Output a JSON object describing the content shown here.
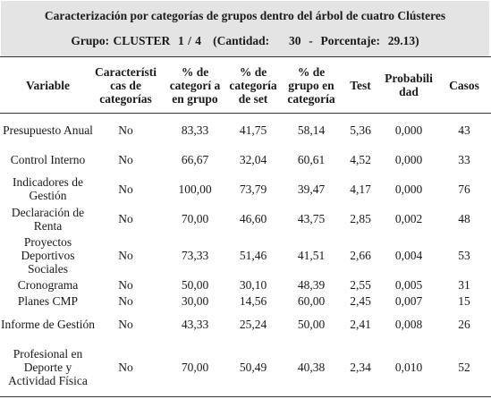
{
  "caption": {
    "title": "Caracterización por categorías de grupos dentro del árbol de cuatro Clústeres",
    "subtitle": "Grupo: CLUSTER  1 / 4   (Cantidad:     30  -  Porcentaje:  29.13)"
  },
  "headers": {
    "variable": "Variable",
    "caracteristicas": "Característi cas de categorías",
    "cat_grupo": "% de categorí a en grupo",
    "cat_set": "% de categoría de set",
    "grupo_cat": "% de grupo en categoría",
    "test": "Test",
    "prob": "Probabili dad",
    "casos": "Casos"
  },
  "rows": [
    {
      "variable": "Presupuesto Anual",
      "caracteristicas": "No",
      "cat_grupo": "83,33",
      "cat_set": "41,75",
      "grupo_cat": "58,14",
      "test": "5,36",
      "prob": "0,000",
      "casos": "43"
    },
    {
      "variable": "Control Interno",
      "caracteristicas": "No",
      "cat_grupo": "66,67",
      "cat_set": "32,04",
      "grupo_cat": "60,61",
      "test": "4,52",
      "prob": "0,000",
      "casos": "33"
    },
    {
      "variable": "Indicadores de Gestión",
      "caracteristicas": "No",
      "cat_grupo": "100,00",
      "cat_set": "73,79",
      "grupo_cat": "39,47",
      "test": "4,17",
      "prob": "0,000",
      "casos": "76"
    },
    {
      "variable": "Declaración de Renta",
      "caracteristicas": "No",
      "cat_grupo": "70,00",
      "cat_set": "46,60",
      "grupo_cat": "43,75",
      "test": "2,85",
      "prob": "0,002",
      "casos": "48"
    },
    {
      "variable": "Proyectos Deportivos Sociales",
      "caracteristicas": "No",
      "cat_grupo": "73,33",
      "cat_set": "51,46",
      "grupo_cat": "41,51",
      "test": "2,66",
      "prob": "0,004",
      "casos": "53"
    },
    {
      "variable": "Cronograma",
      "caracteristicas": "No",
      "cat_grupo": "50,00",
      "cat_set": "30,10",
      "grupo_cat": "48,39",
      "test": "2,55",
      "prob": "0,005",
      "casos": "31"
    },
    {
      "variable": "Planes CMP",
      "caracteristicas": "No",
      "cat_grupo": "30,00",
      "cat_set": "14,56",
      "grupo_cat": "60,00",
      "test": "2,45",
      "prob": "0,007",
      "casos": "15"
    },
    {
      "variable": "Informe de Gestión",
      "caracteristicas": "No",
      "cat_grupo": "43,33",
      "cat_set": "25,24",
      "grupo_cat": "50,00",
      "test": "2,41",
      "prob": "0,008",
      "casos": "26"
    },
    {
      "variable": "Profesional en Deporte y Actividad Física",
      "caracteristicas": "No",
      "cat_grupo": "70,00",
      "cat_set": "50,49",
      "grupo_cat": "40,38",
      "test": "2,34",
      "prob": "0,010",
      "casos": "52"
    }
  ]
}
